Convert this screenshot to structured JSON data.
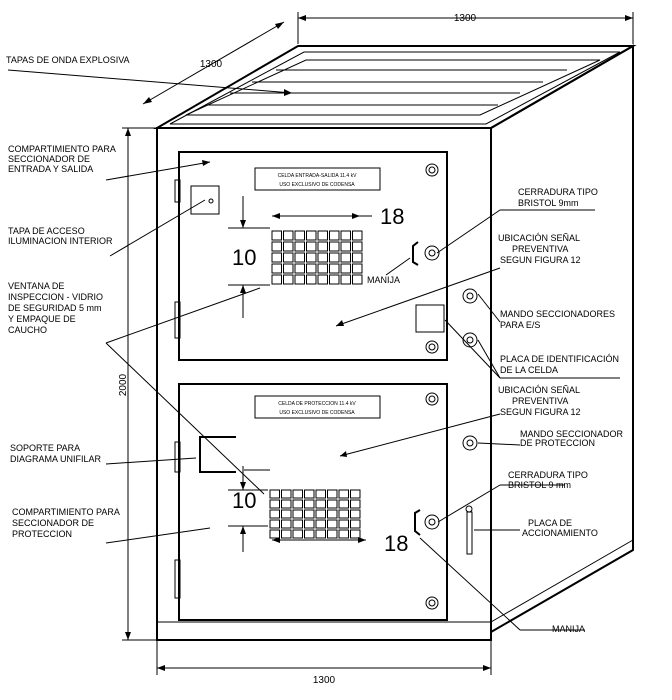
{
  "dimensions": {
    "top_width": "1300",
    "depth": "1300",
    "height": "2000",
    "bottom_width": "1300"
  },
  "upper_panel": {
    "title_line1": "CELDA ENTRADA-SALIDA 11.4 kV",
    "title_line2": "USO EXCLUSIVO DE CODENSA",
    "grid_width": "18",
    "grid_height": "10"
  },
  "lower_panel": {
    "title_line1": "CELDA DE PROTECCION 11.4 kV",
    "title_line2": "USO EXCLUSIVO DE CODENSA",
    "grid_width": "18",
    "grid_height": "10"
  },
  "labels": {
    "blast_covers": "TAPAS DE ONDA EXPLOSIVA",
    "input_output_compartment": [
      "COMPARTIMIENTO PARA",
      "SECCIONADOR DE",
      "ENTRADA Y SALIDA"
    ],
    "lighting_access_cover": [
      "TAPA DE ACCESO",
      "ILUMINACION INTERIOR"
    ],
    "inspection_window": [
      "VENTANA DE",
      "INSPECCION - VIDRIO",
      "DE SEGURIDAD 5 mm",
      "Y EMPAQUE DE",
      "CAUCHO"
    ],
    "single_line_support": [
      "SOPORTE PARA",
      "DIAGRAMA UNIFILAR"
    ],
    "protection_compartment": [
      "COMPARTIMIENTO PARA",
      "SECCIONADOR DE",
      "PROTECCION"
    ],
    "bristol_lock_upper": [
      "CERRADURA TIPO",
      "BRISTOL 9mm"
    ],
    "warning_sign_upper": [
      "UBICACIÓN SEÑAL",
      "PREVENTIVA",
      "SEGUN FIGURA 12"
    ],
    "handle_upper": "MANIJA",
    "switch_controls_es": [
      "MANDO SECCIONADORES",
      "PARA E/S"
    ],
    "cell_id_plate": [
      "PLACA DE IDENTIFICACIÓN",
      "DE LA CELDA"
    ],
    "warning_sign_lower": [
      "UBICACIÓN SEÑAL",
      "PREVENTIVA",
      "SEGUN FIGURA 12"
    ],
    "protection_switch_control": [
      "MANDO SECCIONADOR",
      "DE PROTECCION"
    ],
    "bristol_lock_lower": [
      "CERRADURA TIPO",
      "BRISTOL 9 mm"
    ],
    "actuation_plate": [
      "PLACA DE",
      "ACCIONAMIENTO"
    ],
    "handle_lower": "MANIJA"
  }
}
